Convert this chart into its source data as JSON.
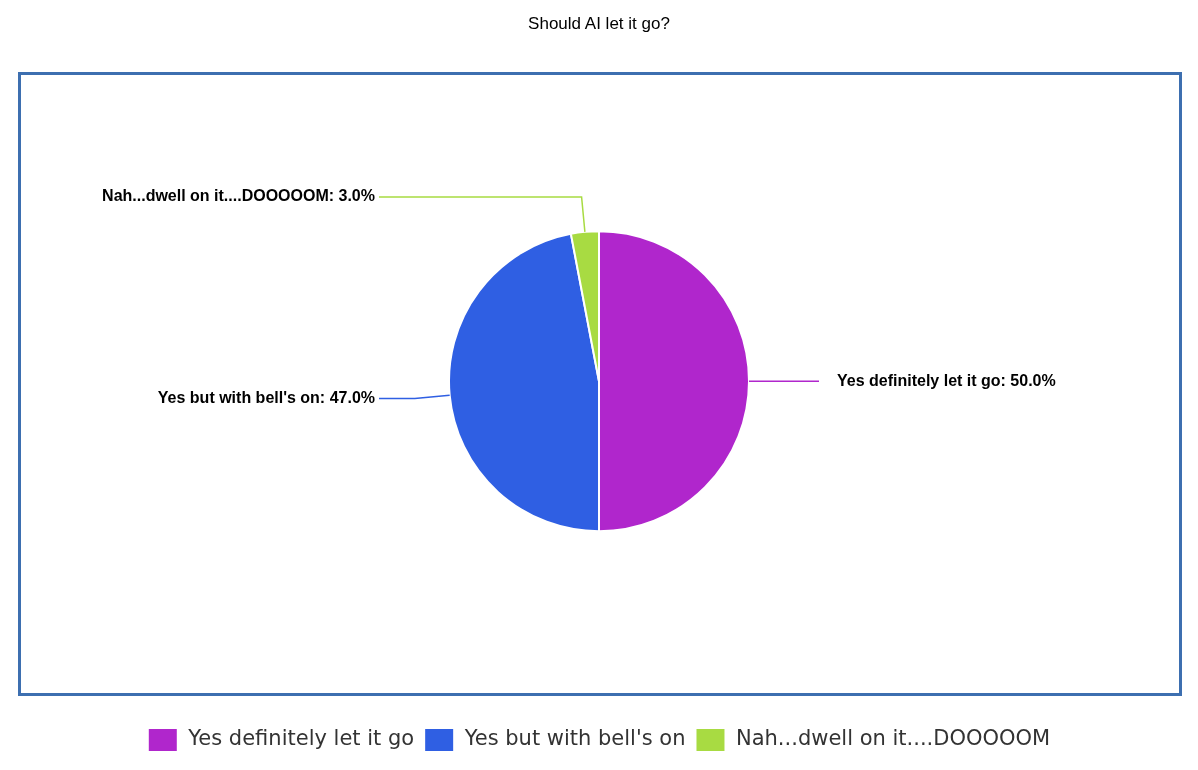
{
  "chart_data": {
    "type": "pie",
    "title": "Should AI let it go?",
    "categories": [
      "Yes definitely let it go",
      "Yes but with bell's on",
      "Nah...dwell on it....DOOOOOM"
    ],
    "values": [
      50.0,
      47.0,
      3.0
    ],
    "colors": [
      "#b026cc",
      "#2f5fe3",
      "#a8db42"
    ],
    "value_labels": [
      "Yes definitely let it go: 50.0%",
      "Yes but with bell's on: 47.0%",
      "Nah...dwell on it....DOOOOOM: 3.0%"
    ],
    "legend": "bottom"
  }
}
